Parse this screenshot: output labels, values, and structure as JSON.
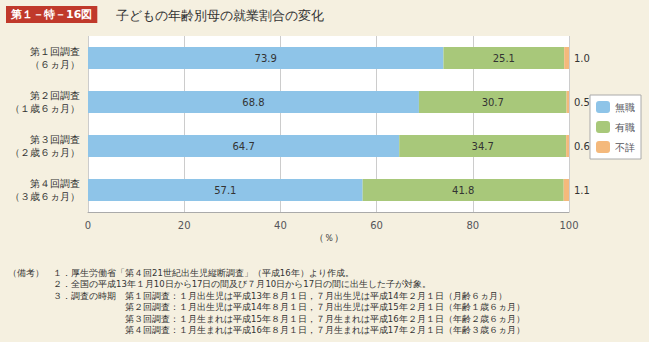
{
  "chart_data": {
    "type": "bar",
    "orientation": "horizontal",
    "stacked": true,
    "title": "子どもの年齢別母の就業割合の変化",
    "subtitle": "第１－特－16図",
    "annotations": [
      "（備考）　１．厚生労働省「第４回21世紀出生児縦断調査」（平成16年）より作成。",
      "　　　　　２．全国の平成13年１月10日から17日の間及び７月10日から17日の間に出生した子が対象。",
      "　　　　　３．調査の時期　第１回調査：１月出生児は平成13年８月１日，７月出生児は平成14年２月１日（月齢６ヵ月）",
      "　　　　　　　　　　　　　第２回調査：１月出生児は平成14年８月１日，７月出生児は平成15年２月１日（年齢１歳６ヵ月）",
      "　　　　　　　　　　　　　第３回調査：１月生まれは平成15年８月１日，７月生まれは平成16年２月１日（年齢２歳６ヵ月）",
      "　　　　　　　　　　　　　第４回調査：１月生まれは平成16年８月１日，７月生まれは平成17年２月１日（年齢３歳６ヵ月）"
    ],
    "categories": [
      "第１回調査\n（６ヵ月）",
      "第２回調査\n（１歳６ヵ月）",
      "第３回調査\n（２歳６ヵ月）",
      "第４回調査\n（３歳６ヵ月）"
    ],
    "series": [
      {
        "name": "無職",
        "color": "#8ec4e8",
        "values": [
          73.9,
          68.8,
          64.7,
          57.1
        ]
      },
      {
        "name": "有職",
        "color": "#a8c87a",
        "values": [
          25.1,
          30.7,
          34.7,
          41.8
        ]
      },
      {
        "name": "不詳",
        "color": "#f4b97c",
        "values": [
          1.0,
          0.5,
          0.6,
          1.1
        ],
        "value_labels": [
          "1.0",
          "0.5",
          "0.6",
          "1.1"
        ]
      }
    ],
    "xlabel": "（％）",
    "xlim": [
      0,
      100
    ],
    "xticks": [
      0,
      20,
      40,
      60,
      80,
      100
    ],
    "grid": true,
    "legend": "right",
    "data_labels": true
  }
}
